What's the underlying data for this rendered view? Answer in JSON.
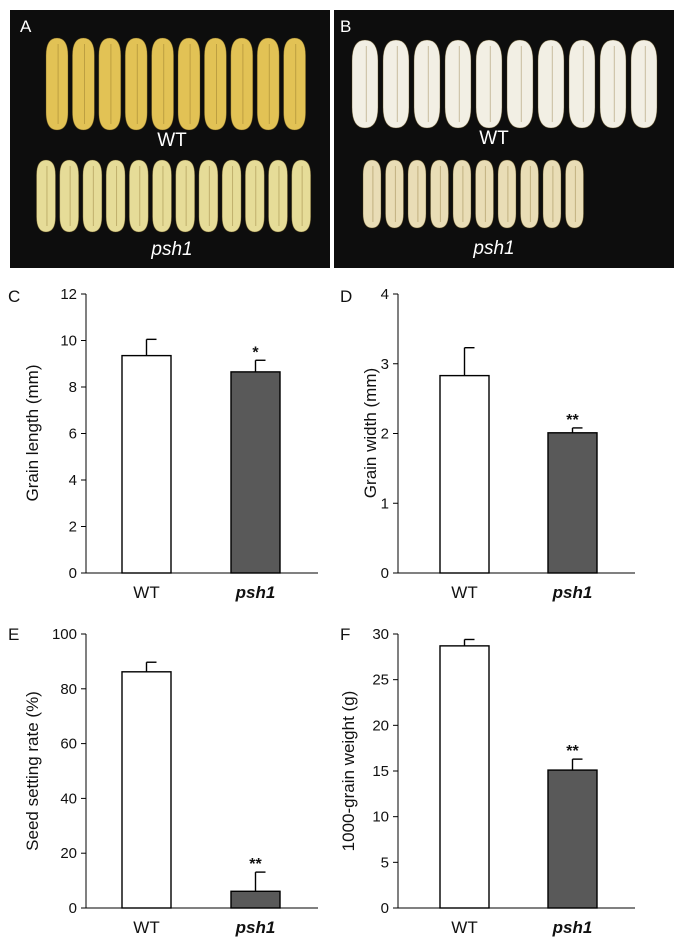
{
  "photos": [
    {
      "panel": "A",
      "top_label": "WT",
      "bottom_label": "psh1"
    },
    {
      "panel": "B",
      "top_label": "WT",
      "bottom_label": "psh1"
    }
  ],
  "chart_data": [
    {
      "panel": "C",
      "type": "bar",
      "categories": [
        "WT",
        "psh1"
      ],
      "values": [
        9.35,
        8.65
      ],
      "errors": [
        0.7,
        0.5
      ],
      "significance": [
        "",
        "*"
      ],
      "ylabel": "Grain length (mm)",
      "ylim": [
        0,
        12
      ],
      "yticks": [
        0,
        2,
        4,
        6,
        8,
        10,
        12
      ],
      "grid": false
    },
    {
      "panel": "D",
      "type": "bar",
      "categories": [
        "WT",
        "psh1"
      ],
      "values": [
        2.83,
        2.01
      ],
      "errors": [
        0.4,
        0.07
      ],
      "significance": [
        "",
        "**"
      ],
      "ylabel": "Grain width (mm)",
      "ylim": [
        0,
        4
      ],
      "yticks": [
        0,
        1,
        2,
        3,
        4
      ],
      "grid": false
    },
    {
      "panel": "E",
      "type": "bar",
      "categories": [
        "WT",
        "psh1"
      ],
      "values": [
        86.2,
        6.1
      ],
      "errors": [
        3.5,
        7.0
      ],
      "significance": [
        "",
        "**"
      ],
      "ylabel": "Seed setting rate (%)",
      "ylim": [
        0,
        100
      ],
      "yticks": [
        0,
        20,
        40,
        60,
        80,
        100
      ],
      "grid": false
    },
    {
      "panel": "F",
      "type": "bar",
      "categories": [
        "WT",
        "psh1"
      ],
      "values": [
        28.7,
        15.1
      ],
      "errors": [
        0.7,
        1.2
      ],
      "significance": [
        "",
        "**"
      ],
      "ylabel": "1000-grain weight (g)",
      "ylim": [
        0,
        30
      ],
      "yticks": [
        0,
        5,
        10,
        15,
        20,
        25,
        30
      ],
      "grid": false
    }
  ],
  "colors": {
    "wt_bar": "#ffffff",
    "mutant_bar": "#595959",
    "wt_seed_a": "#e2c255",
    "mutant_seed_a": "#e6dc98",
    "wt_seed_b": "#f2efe4",
    "mutant_seed_b": "#e9ddb6"
  }
}
